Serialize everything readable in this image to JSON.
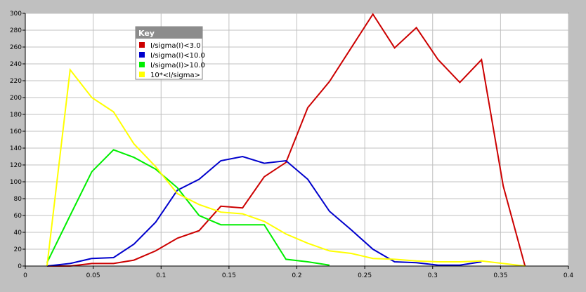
{
  "chart_data": {
    "type": "line",
    "title": "",
    "xlabel": "",
    "ylabel": "",
    "xlim": [
      0,
      0.4
    ],
    "ylim": [
      0,
      300
    ],
    "grid": true,
    "legend_position": "top-left",
    "legend_title": "Key",
    "x_ticks": [
      "0",
      "0.05",
      "0.1",
      "0.15",
      "0.2",
      "0.25",
      "0.3",
      "0.35",
      "0.4"
    ],
    "x_tick_values": [
      0,
      0.05,
      0.1,
      0.15,
      0.2,
      0.25,
      0.3,
      0.35,
      0.4
    ],
    "y_ticks": [
      "0",
      "20",
      "40",
      "60",
      "80",
      "100",
      "120",
      "140",
      "160",
      "180",
      "200",
      "220",
      "240",
      "260",
      "280",
      "300"
    ],
    "y_tick_values": [
      0,
      20,
      40,
      60,
      80,
      100,
      120,
      140,
      160,
      180,
      200,
      220,
      240,
      260,
      280,
      300
    ],
    "series": [
      {
        "name": "I/sigma(I)<3.0",
        "color": "#cc0000",
        "x": [
          0.016,
          0.033,
          0.049,
          0.065,
          0.08,
          0.096,
          0.112,
          0.128,
          0.144,
          0.16,
          0.176,
          0.192,
          0.208,
          0.224,
          0.24,
          0.256,
          0.272,
          0.288,
          0.304,
          0.32,
          0.336,
          0.352,
          0.368
        ],
        "values": [
          0,
          0,
          3,
          3,
          7,
          18,
          33,
          42,
          71,
          69,
          106,
          123,
          188,
          219,
          259,
          299,
          259,
          283,
          245,
          218,
          245,
          95,
          0
        ]
      },
      {
        "name": "I/sigma(I)<10.0",
        "color": "#0000cc",
        "x": [
          0.016,
          0.033,
          0.049,
          0.065,
          0.08,
          0.096,
          0.112,
          0.128,
          0.144,
          0.16,
          0.176,
          0.192,
          0.208,
          0.224,
          0.24,
          0.256,
          0.272,
          0.288,
          0.304,
          0.32,
          0.336
        ],
        "values": [
          0,
          3,
          9,
          10,
          26,
          52,
          90,
          103,
          125,
          130,
          122,
          125,
          103,
          65,
          43,
          20,
          5,
          4,
          1,
          1,
          5
        ]
      },
      {
        "name": "I/sigma(I)>10.0",
        "color": "#00ee00",
        "x": [
          0.016,
          0.033,
          0.049,
          0.065,
          0.08,
          0.096,
          0.112,
          0.128,
          0.144,
          0.16,
          0.176,
          0.192,
          0.208,
          0.224
        ],
        "values": [
          4,
          60,
          112,
          138,
          129,
          115,
          93,
          60,
          49,
          49,
          49,
          8,
          5,
          1
        ]
      },
      {
        "name": "10*<I/sigma>",
        "color": "#ffff00",
        "x": [
          0.016,
          0.033,
          0.049,
          0.065,
          0.08,
          0.096,
          0.112,
          0.128,
          0.144,
          0.16,
          0.176,
          0.192,
          0.208,
          0.224,
          0.24,
          0.256,
          0.272,
          0.288,
          0.304,
          0.32,
          0.336,
          0.352,
          0.368
        ],
        "values": [
          0,
          233,
          200,
          183,
          145,
          118,
          86,
          73,
          64,
          62,
          53,
          38,
          27,
          18,
          15,
          9,
          8,
          6,
          5,
          5,
          6,
          3,
          0
        ]
      }
    ]
  }
}
